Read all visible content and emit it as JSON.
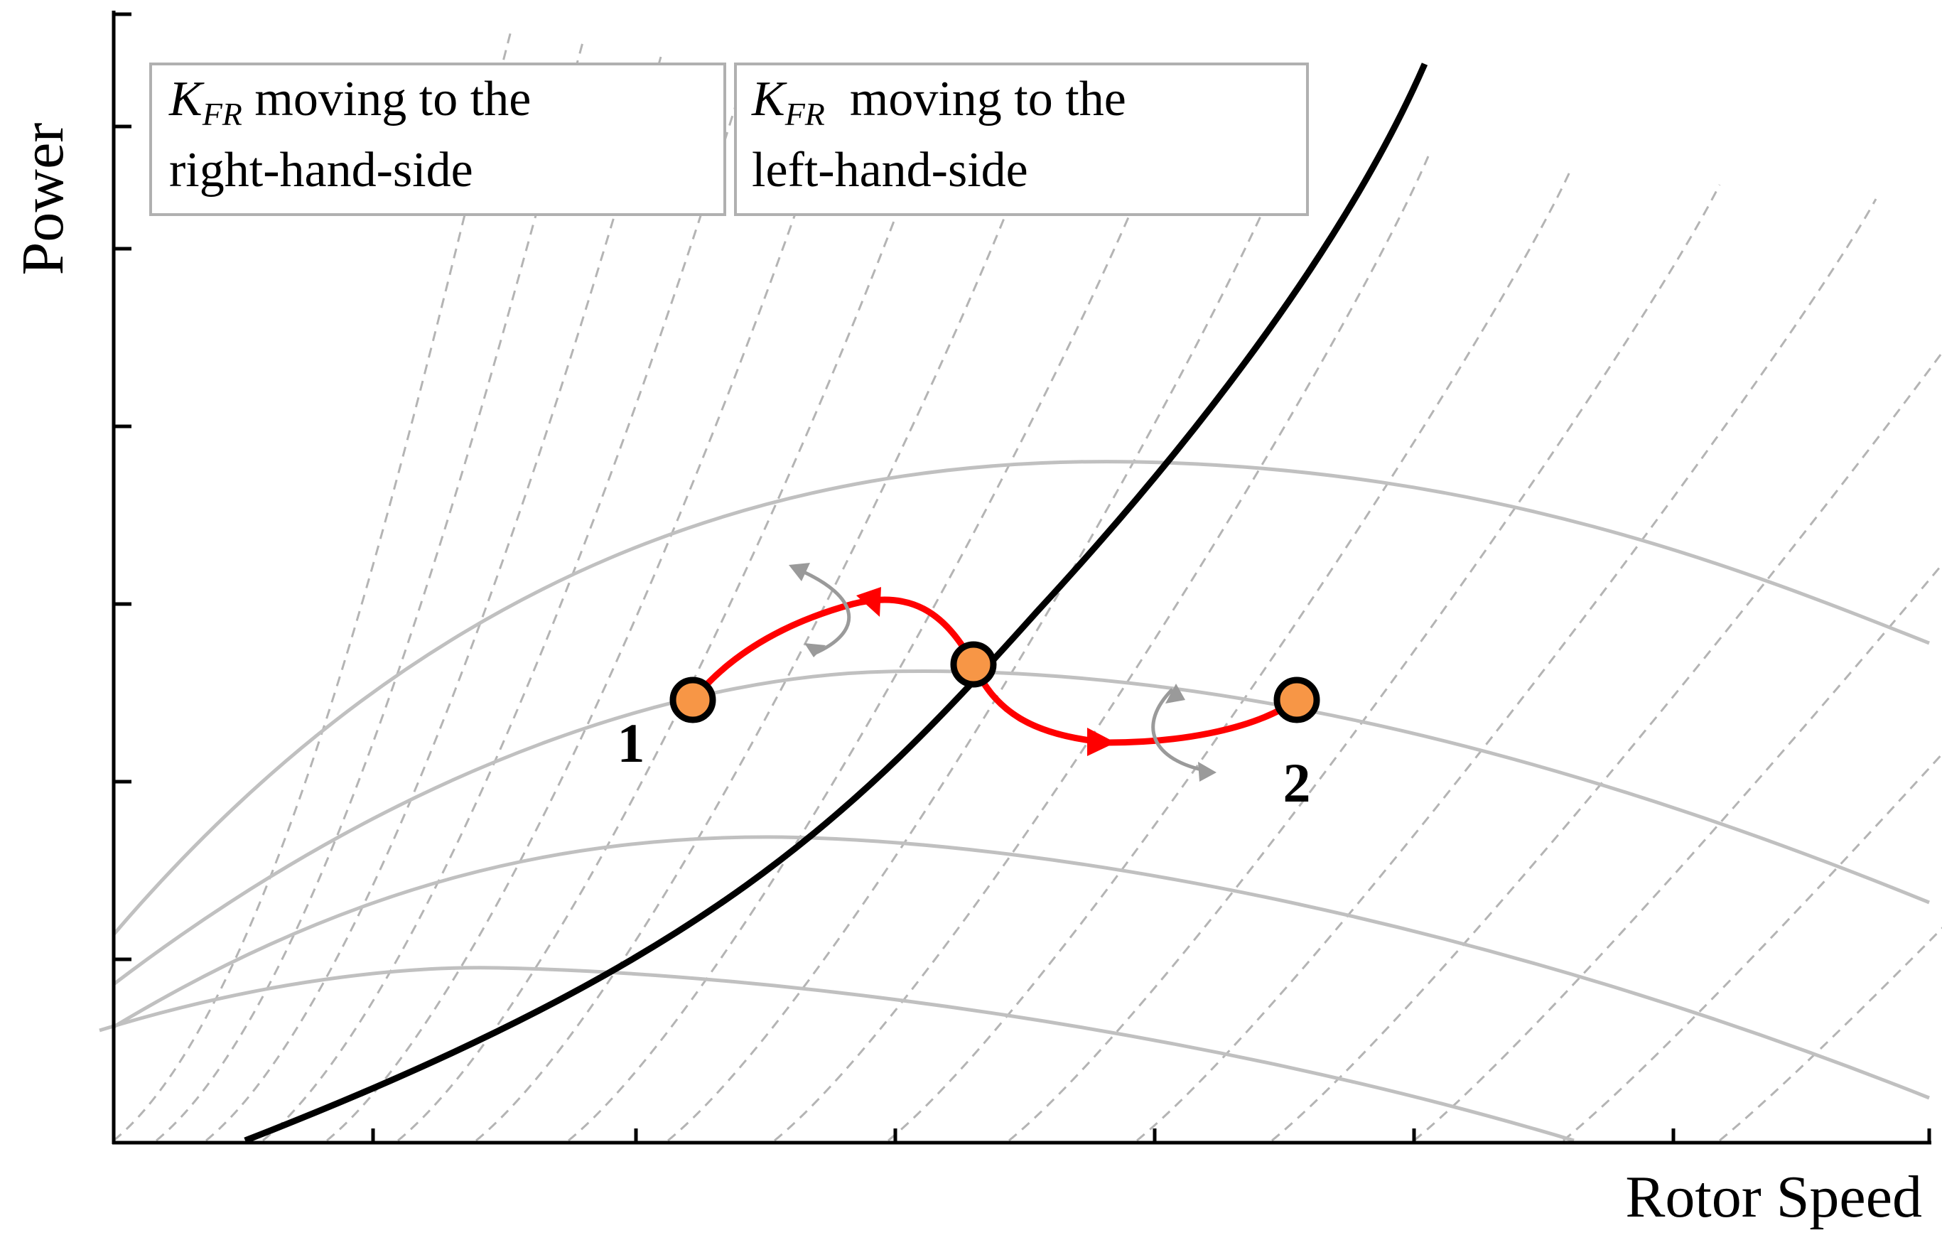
{
  "axes": {
    "xlabel": "Rotor Speed",
    "ylabel": "Power"
  },
  "legend_boxes": [
    {
      "symbol": "K",
      "subscript": "FR",
      "line1_rest": " moving to the",
      "line2": "right-hand-side"
    },
    {
      "symbol": "K",
      "subscript": "FR",
      "line1_rest": "  moving to the",
      "line2": "left-hand-side"
    }
  ],
  "points": [
    {
      "label": "1"
    },
    {
      "label": ""
    },
    {
      "label": "2"
    }
  ],
  "colors": {
    "axis": "#000000",
    "control_curve": "#000000",
    "power_curves": "#c0c0c0",
    "guide_lines": "#b4b4b4",
    "trajectory": "#ff0000",
    "point_fill": "#f79646",
    "small_arrows": "#9a9a9a"
  }
}
